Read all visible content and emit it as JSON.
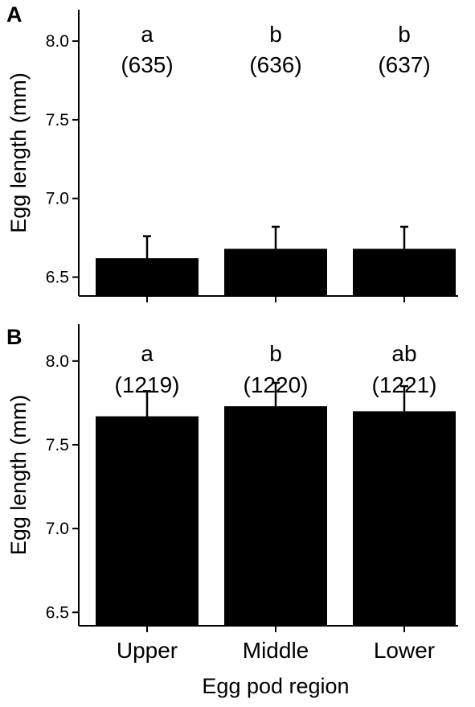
{
  "chart_data": [
    {
      "panel": "A",
      "type": "bar",
      "categories": [
        "Upper",
        "Middle",
        "Lower"
      ],
      "series": [
        {
          "values": [
            6.62,
            6.68,
            6.68
          ],
          "error": [
            0.14,
            0.14,
            0.14
          ]
        }
      ],
      "annotations": [
        {
          "letter": "a",
          "count": "(635)"
        },
        {
          "letter": "b",
          "count": "(636)"
        },
        {
          "letter": "b",
          "count": "(637)"
        }
      ],
      "ylabel": "Egg length (mm)",
      "xlabel": "",
      "ylim": [
        6.38,
        8.2
      ],
      "yticks": [
        "6.5",
        "7.0",
        "7.5",
        "8.0"
      ],
      "bar_color": "#000000",
      "show_x_tick_labels": false
    },
    {
      "panel": "B",
      "type": "bar",
      "categories": [
        "Upper",
        "Middle",
        "Lower"
      ],
      "series": [
        {
          "values": [
            7.67,
            7.73,
            7.7
          ],
          "error": [
            0.15,
            0.14,
            0.15
          ]
        }
      ],
      "annotations": [
        {
          "letter": "a",
          "count": "(1219)"
        },
        {
          "letter": "b",
          "count": "(1220)"
        },
        {
          "letter": "ab",
          "count": "(1221)"
        }
      ],
      "ylabel": "Egg length (mm)",
      "xlabel": "Egg pod region",
      "ylim": [
        6.42,
        8.22
      ],
      "yticks": [
        "6.5",
        "7.0",
        "7.5",
        "8.0"
      ],
      "bar_color": "#000000",
      "show_x_tick_labels": true
    }
  ]
}
